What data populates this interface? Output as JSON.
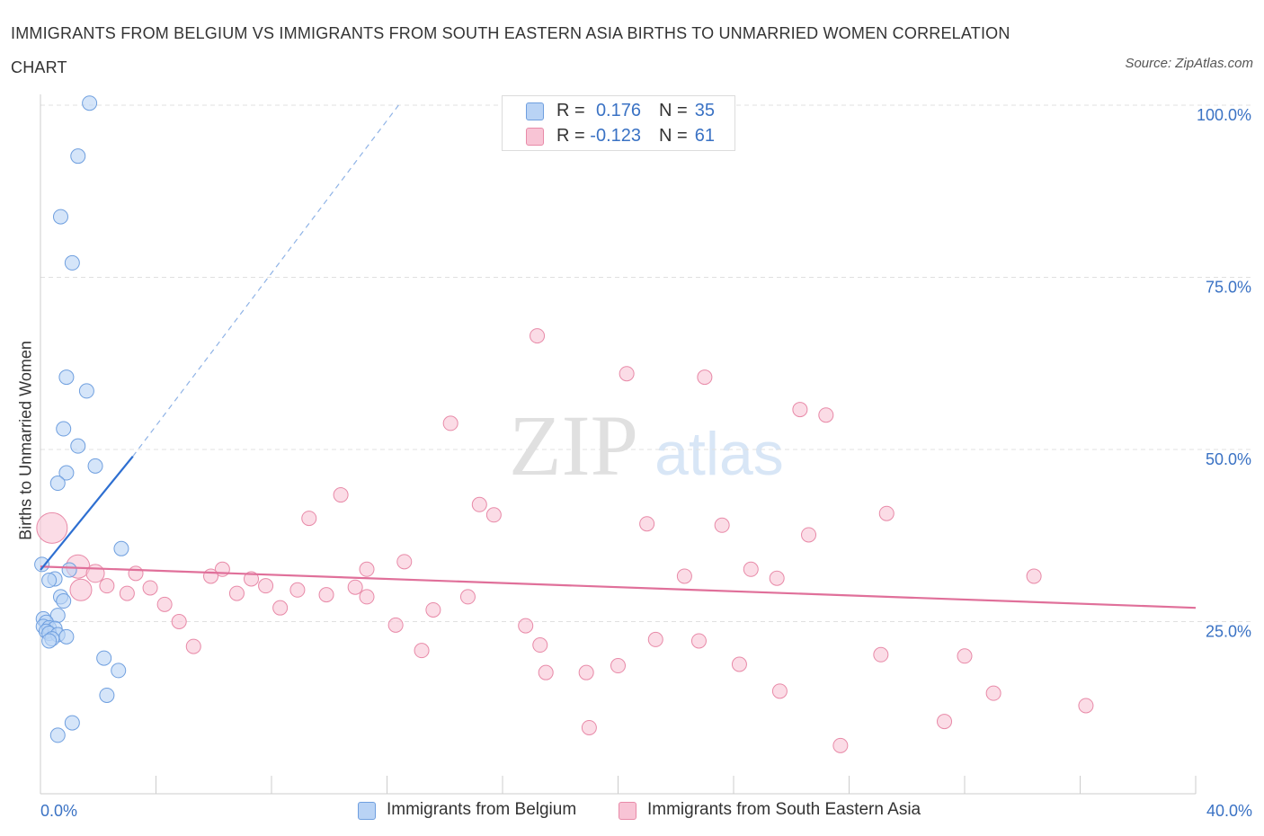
{
  "title": "IMMIGRANTS FROM BELGIUM VS IMMIGRANTS FROM SOUTH EASTERN ASIA BIRTHS TO UNMARRIED WOMEN CORRELATION CHART",
  "source": "Source: ZipAtlas.com",
  "watermark": {
    "zip": "ZIP",
    "atlas": "atlas"
  },
  "legend_top": [
    {
      "r_label": "R =",
      "r_value": "0.176",
      "n_label": "N =",
      "n_value": "35"
    },
    {
      "r_label": "R =",
      "r_value": "-0.123",
      "n_label": "N =",
      "n_value": "61"
    }
  ],
  "legend_bottom": [
    {
      "label": "Immigrants from Belgium"
    },
    {
      "label": "Immigrants from South Eastern Asia"
    }
  ],
  "colors": {
    "blue_fill": "#b9d3f5",
    "blue_stroke": "#6f9fdf",
    "blue_line": "#2e6fd1",
    "pink_fill": "#f8c4d5",
    "pink_stroke": "#e88aa8",
    "pink_line": "#e0709a",
    "tick_label": "#3a72c4",
    "grid": "#e0e0e0"
  },
  "chart_data": {
    "type": "scatter",
    "title": "IMMIGRANTS FROM BELGIUM VS IMMIGRANTS FROM SOUTH EASTERN ASIA BIRTHS TO UNMARRIED WOMEN CORRELATION CHART",
    "xlabel": "",
    "ylabel": "Births to Unmarried Women",
    "xlim": [
      0,
      40
    ],
    "ylim": [
      0,
      100
    ],
    "x_tick_labels": [
      {
        "value": 0,
        "label": "0.0%"
      },
      {
        "value": 40,
        "label": "40.0%"
      }
    ],
    "y_tick_labels": [
      {
        "value": 25,
        "label": "25.0%"
      },
      {
        "value": 50,
        "label": "50.0%"
      },
      {
        "value": 75,
        "label": "75.0%"
      },
      {
        "value": 100,
        "label": "100.0%"
      }
    ],
    "grid": true,
    "series": [
      {
        "name": "Immigrants from Belgium",
        "color": "blue",
        "points": [
          [
            1.7,
            100.3
          ],
          [
            1.3,
            92.6
          ],
          [
            0.7,
            83.8
          ],
          [
            1.1,
            77.1
          ],
          [
            0.9,
            60.5
          ],
          [
            1.6,
            58.5
          ],
          [
            0.8,
            53.0
          ],
          [
            1.3,
            50.5
          ],
          [
            1.9,
            47.6
          ],
          [
            0.9,
            46.6
          ],
          [
            0.6,
            45.1
          ],
          [
            2.8,
            35.6
          ],
          [
            0.05,
            33.3
          ],
          [
            1.0,
            32.5
          ],
          [
            0.5,
            31.2
          ],
          [
            0.3,
            31.0
          ],
          [
            0.7,
            28.6
          ],
          [
            0.8,
            28.0
          ],
          [
            0.6,
            25.9
          ],
          [
            0.1,
            25.4
          ],
          [
            0.2,
            24.9
          ],
          [
            0.1,
            24.3
          ],
          [
            0.3,
            24.1
          ],
          [
            0.5,
            24.0
          ],
          [
            0.2,
            23.6
          ],
          [
            0.3,
            23.3
          ],
          [
            0.6,
            23.1
          ],
          [
            0.9,
            22.8
          ],
          [
            0.4,
            22.5
          ],
          [
            0.3,
            22.2
          ],
          [
            2.2,
            19.7
          ],
          [
            2.7,
            17.9
          ],
          [
            2.3,
            14.3
          ],
          [
            1.1,
            10.3
          ],
          [
            0.6,
            8.5
          ]
        ],
        "trend": {
          "x": [
            0.0,
            3.2
          ],
          "y": [
            32.5,
            49.0
          ]
        },
        "trend_extension": {
          "x": [
            3.2,
            12.4
          ],
          "y": [
            49.0,
            100.0
          ]
        }
      },
      {
        "name": "Immigrants from South Eastern Asia",
        "color": "pink",
        "points": [
          [
            17.2,
            66.5
          ],
          [
            20.3,
            61.0
          ],
          [
            23.0,
            60.5
          ],
          [
            26.3,
            55.8
          ],
          [
            27.2,
            55.0
          ],
          [
            14.2,
            53.8
          ],
          [
            10.4,
            43.4
          ],
          [
            15.2,
            42.0
          ],
          [
            15.7,
            40.5
          ],
          [
            9.3,
            40.0
          ],
          [
            29.3,
            40.7
          ],
          [
            21.0,
            39.2
          ],
          [
            23.6,
            39.0
          ],
          [
            26.6,
            37.6
          ],
          [
            0.4,
            38.6
          ],
          [
            12.6,
            33.7
          ],
          [
            11.3,
            32.6
          ],
          [
            6.3,
            32.6
          ],
          [
            3.3,
            32.0
          ],
          [
            5.9,
            31.6
          ],
          [
            7.3,
            31.2
          ],
          [
            1.3,
            33.0
          ],
          [
            1.9,
            32.0
          ],
          [
            24.6,
            32.6
          ],
          [
            22.3,
            31.6
          ],
          [
            25.5,
            31.3
          ],
          [
            34.4,
            31.6
          ],
          [
            2.3,
            30.2
          ],
          [
            7.8,
            30.2
          ],
          [
            1.4,
            29.6
          ],
          [
            3.8,
            29.9
          ],
          [
            8.9,
            29.6
          ],
          [
            10.9,
            30.0
          ],
          [
            6.8,
            29.1
          ],
          [
            3.0,
            29.1
          ],
          [
            9.9,
            28.9
          ],
          [
            11.3,
            28.6
          ],
          [
            14.8,
            28.6
          ],
          [
            4.3,
            27.5
          ],
          [
            8.3,
            27.0
          ],
          [
            13.6,
            26.7
          ],
          [
            4.8,
            25.0
          ],
          [
            12.3,
            24.5
          ],
          [
            16.8,
            24.4
          ],
          [
            21.3,
            22.4
          ],
          [
            22.8,
            22.2
          ],
          [
            17.3,
            21.6
          ],
          [
            5.3,
            21.4
          ],
          [
            13.2,
            20.8
          ],
          [
            29.1,
            20.2
          ],
          [
            32.0,
            20.0
          ],
          [
            24.2,
            18.8
          ],
          [
            20.0,
            18.6
          ],
          [
            17.5,
            17.6
          ],
          [
            18.9,
            17.6
          ],
          [
            25.6,
            14.9
          ],
          [
            33.0,
            14.6
          ],
          [
            36.2,
            12.8
          ],
          [
            31.3,
            10.5
          ],
          [
            19.0,
            9.6
          ],
          [
            27.7,
            7.0
          ]
        ],
        "trend": {
          "x": [
            0.0,
            40.0
          ],
          "y": [
            33.0,
            27.0
          ]
        }
      }
    ]
  }
}
